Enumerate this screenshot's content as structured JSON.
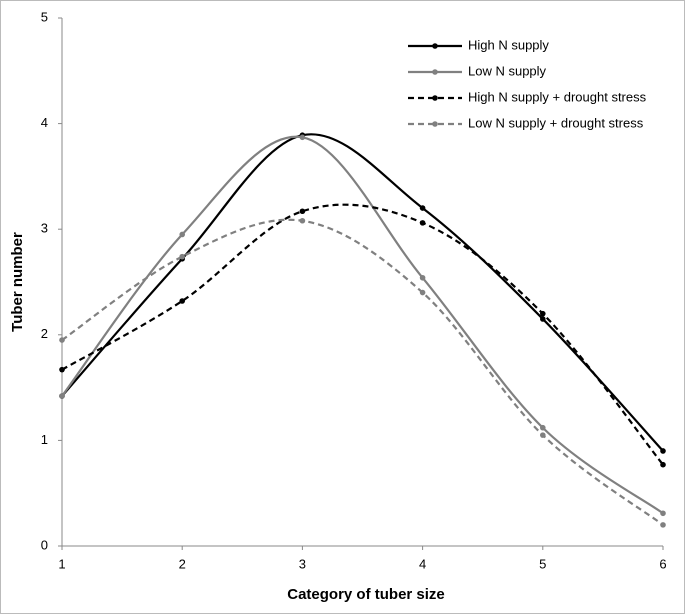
{
  "chart_data": {
    "type": "line",
    "xlabel": "Category of tuber size",
    "ylabel": "Tuber number",
    "x": [
      1,
      2,
      3,
      4,
      5,
      6
    ],
    "xlim": [
      1,
      6
    ],
    "xticks": [
      1,
      2,
      3,
      4,
      5,
      6
    ],
    "ylim": [
      0,
      5
    ],
    "yticks": [
      0,
      1,
      2,
      3,
      4,
      5
    ],
    "grid": false,
    "legend": "upper-right",
    "smooth": true,
    "series": [
      {
        "name": "High N supply",
        "color": "#000000",
        "dash": false,
        "values": [
          1.42,
          2.72,
          3.89,
          3.2,
          2.15,
          0.9
        ]
      },
      {
        "name": "Low N supply",
        "color": "#808080",
        "dash": false,
        "values": [
          1.42,
          2.95,
          3.87,
          2.54,
          1.12,
          0.31
        ]
      },
      {
        "name": "High N supply + drought stress",
        "color": "#000000",
        "dash": true,
        "values": [
          1.67,
          2.32,
          3.17,
          3.06,
          2.2,
          0.77
        ]
      },
      {
        "name": "Low N supply + drought stress",
        "color": "#808080",
        "dash": true,
        "values": [
          1.95,
          2.74,
          3.08,
          2.4,
          1.05,
          0.2
        ]
      }
    ]
  }
}
